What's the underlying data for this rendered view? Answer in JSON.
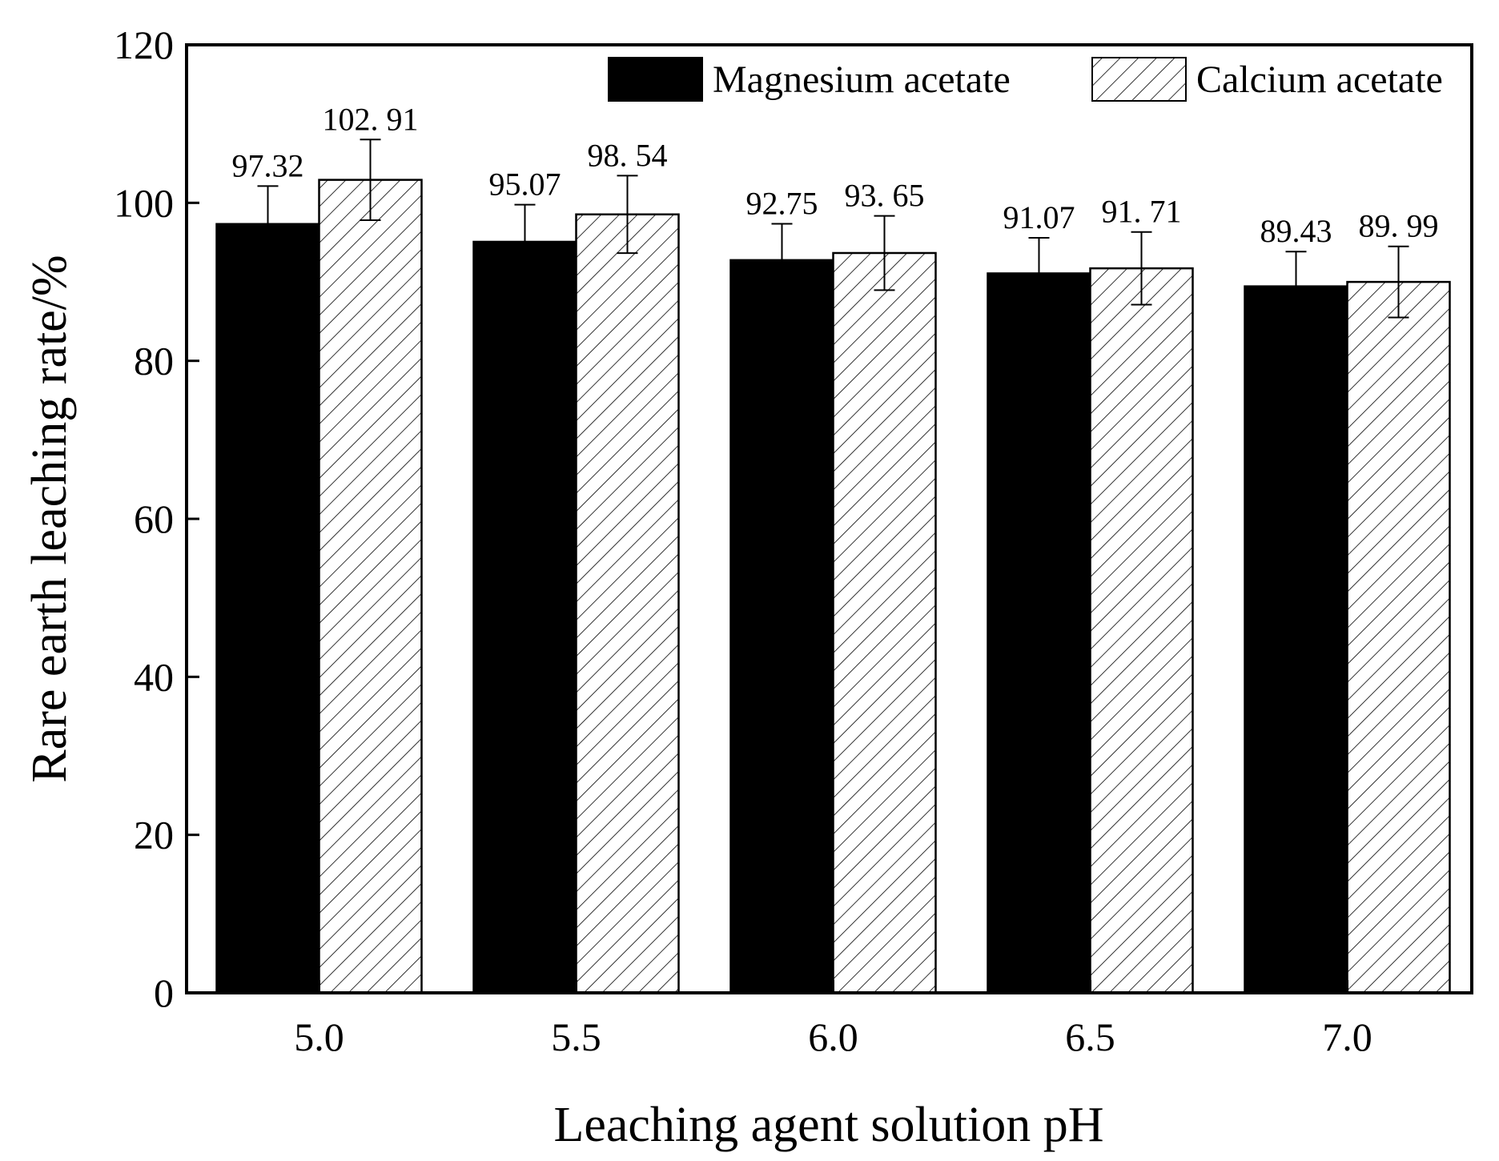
{
  "chart_data": {
    "type": "bar",
    "title": "",
    "xlabel": "Leaching agent solution pH",
    "ylabel": "Rare earth leaching rate/%",
    "categories": [
      "5.0",
      "5.5",
      "6.0",
      "6.5",
      "7.0"
    ],
    "ylim": [
      0,
      120
    ],
    "yticks": [
      0,
      20,
      40,
      60,
      80,
      100,
      120
    ],
    "grid": false,
    "legend_position": "top-right",
    "series": [
      {
        "name": "Magnesium acetate",
        "fill": "#000000",
        "pattern": "solid",
        "values": [
          97.32,
          95.07,
          92.75,
          91.07,
          89.43
        ],
        "labels": [
          "97.32",
          "95.07",
          "92.75",
          "91.07",
          "89.43"
        ],
        "error": [
          4.8,
          4.7,
          4.6,
          4.5,
          4.4
        ]
      },
      {
        "name": "Calcium acetate",
        "fill": "#ffffff",
        "pattern": "diagonal-hatch",
        "values": [
          102.91,
          98.54,
          93.65,
          91.71,
          89.99
        ],
        "labels": [
          "102. 91",
          "98. 54",
          "93. 65",
          "91. 71",
          "89. 99"
        ],
        "error": [
          5.1,
          4.9,
          4.7,
          4.6,
          4.5
        ]
      }
    ]
  }
}
